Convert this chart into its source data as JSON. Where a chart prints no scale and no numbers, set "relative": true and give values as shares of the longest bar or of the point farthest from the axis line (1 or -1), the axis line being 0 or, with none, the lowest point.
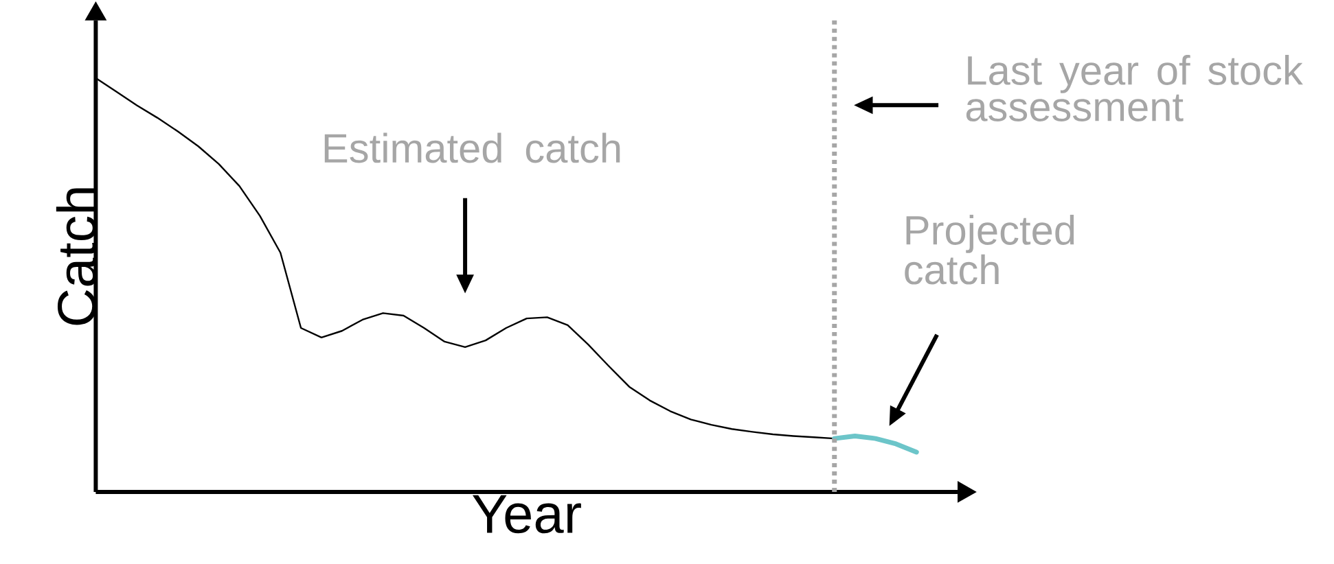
{
  "chart_data": {
    "type": "line",
    "relative": true,
    "xlabel": "Year",
    "ylabel": "Catch",
    "categories": [
      null,
      null,
      null,
      null,
      null,
      null,
      null,
      null,
      null,
      null,
      null,
      null,
      null,
      null,
      null,
      null,
      null,
      null,
      null,
      null,
      null,
      null,
      null,
      null,
      null,
      null,
      null,
      null,
      null,
      null,
      null,
      null,
      null,
      null,
      null,
      null,
      null,
      null,
      null,
      null,
      null
    ],
    "series": [
      {
        "color": "#000000",
        "values": [
          1.0,
          0.967,
          0.934,
          0.904,
          0.871,
          0.835,
          0.792,
          0.739,
          0.667,
          0.578,
          0.396,
          0.373,
          0.389,
          0.416,
          0.432,
          0.426,
          0.396,
          0.363,
          0.35,
          0.366,
          0.396,
          0.419,
          0.422,
          0.403,
          0.356,
          0.304,
          0.254,
          0.221,
          0.195,
          0.175,
          0.162,
          0.152,
          0.145,
          0.139,
          0.135,
          0.132,
          0.129,
          null,
          null,
          null,
          null
        ]
      },
      {
        "color": "#6cc5c9",
        "values": [
          null,
          null,
          null,
          null,
          null,
          null,
          null,
          null,
          null,
          null,
          null,
          null,
          null,
          null,
          null,
          null,
          null,
          null,
          null,
          null,
          null,
          null,
          null,
          null,
          null,
          null,
          null,
          null,
          null,
          null,
          null,
          null,
          null,
          null,
          null,
          null,
          0.129,
          0.135,
          0.129,
          0.116,
          0.096
        ]
      }
    ],
    "annotations": [
      "Estimated catch",
      "Projected catch",
      "Last year of stock assessment"
    ]
  }
}
